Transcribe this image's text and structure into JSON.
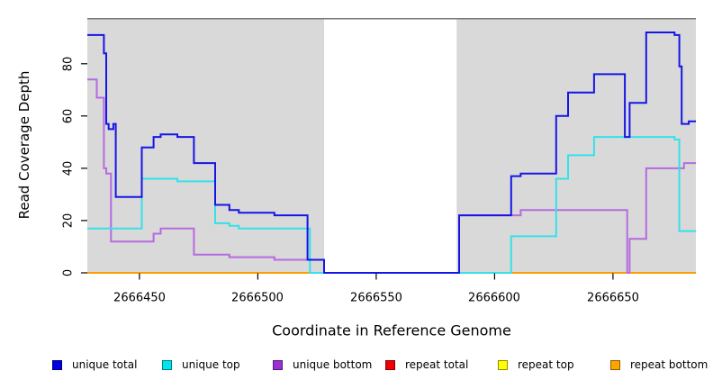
{
  "chart_data": {
    "type": "line",
    "subtype": "step-coverage",
    "title": "",
    "xlabel": "Coordinate in Reference Genome",
    "ylabel": "Read Coverage Depth",
    "xlim": [
      2666428,
      2666685
    ],
    "ylim": [
      0,
      97.5
    ],
    "x_ticks": [
      2666450,
      2666500,
      2666550,
      2666600,
      2666650
    ],
    "y_ticks": [
      0,
      20,
      40,
      60,
      80
    ],
    "grid": false,
    "legend_position": "bottom",
    "plot_background": "#d9d9d9",
    "masked_region": {
      "x_start": 2666528,
      "x_end": 2666584,
      "color": "#ffffff"
    },
    "top_border_color": "#787878",
    "tick_color": "#000000",
    "series": [
      {
        "name": "unique total",
        "color": "#1515e6",
        "points": [
          [
            2666428,
            91
          ],
          [
            2666435,
            84
          ],
          [
            2666436,
            57
          ],
          [
            2666437,
            55
          ],
          [
            2666439,
            57
          ],
          [
            2666440,
            29
          ],
          [
            2666451,
            48
          ],
          [
            2666456,
            52
          ],
          [
            2666459,
            53
          ],
          [
            2666466,
            52
          ],
          [
            2666473,
            42
          ],
          [
            2666482,
            26
          ],
          [
            2666488,
            24
          ],
          [
            2666492,
            23
          ],
          [
            2666507,
            22
          ],
          [
            2666521,
            5
          ],
          [
            2666528,
            0
          ],
          [
            2666585,
            22
          ],
          [
            2666607,
            37
          ],
          [
            2666611,
            38
          ],
          [
            2666626,
            60
          ],
          [
            2666631,
            69
          ],
          [
            2666642,
            76
          ],
          [
            2666655,
            52
          ],
          [
            2666657,
            65
          ],
          [
            2666664,
            92
          ],
          [
            2666676,
            91
          ],
          [
            2666678,
            79
          ],
          [
            2666679,
            57
          ],
          [
            2666682,
            58
          ],
          [
            2666685,
            58
          ]
        ]
      },
      {
        "name": "unique top",
        "color": "#35e1e8",
        "points": [
          [
            2666428,
            17
          ],
          [
            2666451,
            36
          ],
          [
            2666466,
            35
          ],
          [
            2666482,
            19
          ],
          [
            2666488,
            18
          ],
          [
            2666492,
            17
          ],
          [
            2666522,
            0
          ],
          [
            2666607,
            14
          ],
          [
            2666626,
            36
          ],
          [
            2666631,
            45
          ],
          [
            2666642,
            52
          ],
          [
            2666676,
            51
          ],
          [
            2666678,
            16
          ],
          [
            2666685,
            16
          ]
        ]
      },
      {
        "name": "unique bottom",
        "color": "#b66ae0",
        "points": [
          [
            2666428,
            74
          ],
          [
            2666432,
            67
          ],
          [
            2666435,
            40
          ],
          [
            2666436,
            38
          ],
          [
            2666438,
            12
          ],
          [
            2666456,
            15
          ],
          [
            2666459,
            17
          ],
          [
            2666473,
            7
          ],
          [
            2666488,
            6
          ],
          [
            2666507,
            5
          ],
          [
            2666528,
            0
          ],
          [
            2666585,
            22
          ],
          [
            2666611,
            24
          ],
          [
            2666656,
            0
          ],
          [
            2666657,
            13
          ],
          [
            2666664,
            40
          ],
          [
            2666680,
            42
          ],
          [
            2666685,
            42
          ]
        ]
      },
      {
        "name": "repeat total",
        "color": "#ee0000",
        "points": [
          [
            2666428,
            0
          ],
          [
            2666685,
            0
          ]
        ]
      },
      {
        "name": "repeat top",
        "color": "#f6f600",
        "points": [
          [
            2666428,
            0
          ],
          [
            2666685,
            0
          ]
        ]
      },
      {
        "name": "repeat bottom",
        "color": "#ff9d00",
        "points": [
          [
            2666428,
            0
          ],
          [
            2666685,
            0
          ]
        ]
      }
    ],
    "legend_swatch_colors": [
      "#0000e0",
      "#00e5ee",
      "#9b2fd6",
      "#f00000",
      "#ffff00",
      "#ffa500"
    ]
  }
}
